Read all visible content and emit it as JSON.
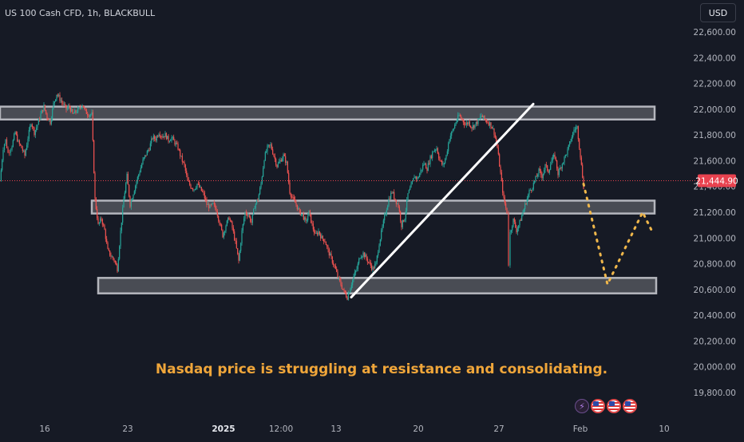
{
  "header": {
    "symbol": "US 100 Cash CFD, 1h, BLACKBULL",
    "currency": "USD"
  },
  "chart_data": {
    "type": "candlestick",
    "instrument": "US 100 Cash CFD",
    "timeframe": "1h",
    "broker": "BLACKBULL",
    "y_axis": {
      "ticks": [
        19800,
        20000,
        20200,
        20400,
        20600,
        20800,
        21000,
        21200,
        21400,
        21600,
        21800,
        22000,
        22200,
        22400,
        22600
      ],
      "tick_labels": [
        "19,800.00",
        "20,000.00",
        "20,200.00",
        "20,400.00",
        "20,600.00",
        "20,800.00",
        "21,000.00",
        "21,200.00",
        "21,400.00",
        "21,600.00",
        "21,800.00",
        "22,000.00",
        "22,200.00",
        "22,400.00",
        "22,600.00"
      ],
      "range": [
        19700,
        22700
      ]
    },
    "x_axis": {
      "tick_labels": [
        "16",
        "23",
        "2025",
        "12:00",
        "13",
        "20",
        "27",
        "Feb",
        "10"
      ]
    },
    "current_price": 21444.9,
    "current_price_label": "21,444.90",
    "price_path": [
      [
        0,
        21440
      ],
      [
        4,
        21700
      ],
      [
        7,
        21760
      ],
      [
        10,
        21660
      ],
      [
        15,
        21720
      ],
      [
        19,
        21820
      ],
      [
        23,
        21740
      ],
      [
        27,
        21700
      ],
      [
        31,
        21640
      ],
      [
        35,
        21780
      ],
      [
        39,
        21900
      ],
      [
        43,
        21820
      ],
      [
        47,
        21880
      ],
      [
        51,
        21960
      ],
      [
        55,
        22020
      ],
      [
        59,
        21940
      ],
      [
        63,
        21900
      ],
      [
        67,
        22040
      ],
      [
        71,
        22120
      ],
      [
        75,
        22080
      ],
      [
        79,
        22040
      ],
      [
        83,
        22000
      ],
      [
        87,
        22020
      ],
      [
        91,
        21960
      ],
      [
        95,
        21980
      ],
      [
        99,
        22000
      ],
      [
        103,
        22040
      ],
      [
        107,
        21980
      ],
      [
        111,
        21960
      ],
      [
        115,
        21960
      ],
      [
        119,
        21300
      ],
      [
        123,
        21100
      ],
      [
        127,
        21150
      ],
      [
        131,
        21060
      ],
      [
        135,
        20900
      ],
      [
        139,
        20860
      ],
      [
        143,
        20830
      ],
      [
        147,
        20760
      ],
      [
        151,
        21050
      ],
      [
        155,
        21300
      ],
      [
        159,
        21480
      ],
      [
        163,
        21260
      ],
      [
        167,
        21350
      ],
      [
        171,
        21440
      ],
      [
        175,
        21520
      ],
      [
        179,
        21600
      ],
      [
        183,
        21650
      ],
      [
        187,
        21700
      ],
      [
        191,
        21780
      ],
      [
        195,
        21770
      ],
      [
        199,
        21820
      ],
      [
        203,
        21790
      ],
      [
        207,
        21800
      ],
      [
        211,
        21760
      ],
      [
        215,
        21780
      ],
      [
        219,
        21740
      ],
      [
        223,
        21700
      ],
      [
        227,
        21620
      ],
      [
        231,
        21560
      ],
      [
        235,
        21440
      ],
      [
        239,
        21400
      ],
      [
        243,
        21380
      ],
      [
        247,
        21420
      ],
      [
        251,
        21380
      ],
      [
        255,
        21340
      ],
      [
        259,
        21260
      ],
      [
        263,
        21240
      ],
      [
        267,
        21260
      ],
      [
        271,
        21220
      ],
      [
        275,
        21120
      ],
      [
        279,
        21020
      ],
      [
        283,
        21100
      ],
      [
        287,
        21160
      ],
      [
        291,
        21080
      ],
      [
        295,
        20960
      ],
      [
        299,
        20820
      ],
      [
        303,
        21050
      ],
      [
        307,
        21200
      ],
      [
        311,
        21180
      ],
      [
        315,
        21120
      ],
      [
        319,
        21250
      ],
      [
        323,
        21300
      ],
      [
        327,
        21420
      ],
      [
        331,
        21620
      ],
      [
        335,
        21700
      ],
      [
        339,
        21720
      ],
      [
        343,
        21640
      ],
      [
        347,
        21560
      ],
      [
        351,
        21600
      ],
      [
        355,
        21640
      ],
      [
        359,
        21580
      ],
      [
        363,
        21360
      ],
      [
        367,
        21300
      ],
      [
        371,
        21260
      ],
      [
        375,
        21200
      ],
      [
        379,
        21180
      ],
      [
        383,
        21120
      ],
      [
        387,
        21200
      ],
      [
        391,
        21100
      ],
      [
        395,
        21020
      ],
      [
        399,
        21050
      ],
      [
        403,
        21000
      ],
      [
        407,
        20980
      ],
      [
        411,
        20900
      ],
      [
        415,
        20840
      ],
      [
        419,
        20780
      ],
      [
        423,
        20700
      ],
      [
        427,
        20640
      ],
      [
        431,
        20580
      ],
      [
        435,
        20540
      ],
      [
        439,
        20620
      ],
      [
        443,
        20700
      ],
      [
        447,
        20760
      ],
      [
        451,
        20860
      ],
      [
        455,
        20880
      ],
      [
        459,
        20840
      ],
      [
        463,
        20800
      ],
      [
        467,
        20760
      ],
      [
        471,
        20800
      ],
      [
        475,
        20960
      ],
      [
        479,
        21080
      ],
      [
        483,
        21200
      ],
      [
        487,
        21300
      ],
      [
        491,
        21360
      ],
      [
        495,
        21300
      ],
      [
        499,
        21250
      ],
      [
        503,
        21100
      ],
      [
        507,
        21160
      ],
      [
        511,
        21340
      ],
      [
        515,
        21400
      ],
      [
        519,
        21480
      ],
      [
        523,
        21460
      ],
      [
        527,
        21520
      ],
      [
        531,
        21580
      ],
      [
        535,
        21540
      ],
      [
        539,
        21620
      ],
      [
        543,
        21680
      ],
      [
        547,
        21700
      ],
      [
        551,
        21600
      ],
      [
        555,
        21560
      ],
      [
        559,
        21640
      ],
      [
        563,
        21780
      ],
      [
        567,
        21830
      ],
      [
        571,
        21900
      ],
      [
        575,
        21950
      ],
      [
        579,
        21920
      ],
      [
        583,
        21880
      ],
      [
        587,
        21900
      ],
      [
        591,
        21860
      ],
      [
        595,
        21880
      ],
      [
        599,
        21910
      ],
      [
        603,
        21950
      ],
      [
        607,
        21920
      ],
      [
        611,
        21900
      ],
      [
        615,
        21880
      ],
      [
        619,
        21820
      ],
      [
        623,
        21700
      ],
      [
        627,
        21500
      ],
      [
        631,
        21300
      ],
      [
        635,
        21200
      ],
      [
        637,
        20800
      ],
      [
        639,
        21040
      ],
      [
        643,
        21140
      ],
      [
        647,
        21060
      ],
      [
        651,
        21120
      ],
      [
        655,
        21200
      ],
      [
        659,
        21280
      ],
      [
        663,
        21360
      ],
      [
        667,
        21400
      ],
      [
        671,
        21460
      ],
      [
        675,
        21520
      ],
      [
        679,
        21480
      ],
      [
        683,
        21560
      ],
      [
        687,
        21520
      ],
      [
        691,
        21600
      ],
      [
        695,
        21640
      ],
      [
        699,
        21500
      ],
      [
        703,
        21560
      ],
      [
        707,
        21620
      ],
      [
        711,
        21680
      ],
      [
        715,
        21760
      ],
      [
        719,
        21840
      ],
      [
        723,
        21860
      ],
      [
        727,
        21640
      ],
      [
        731,
        21400
      ]
    ],
    "zones": [
      {
        "low": 21920,
        "high": 22020
      },
      {
        "low": 21190,
        "high": 21290
      },
      {
        "low": 20570,
        "high": 20690
      }
    ],
    "trendline": {
      "from": [
        440,
        20540
      ],
      "to": [
        668,
        22040
      ]
    },
    "projection": [
      [
        731,
        21420
      ],
      [
        761,
        20640
      ],
      [
        805,
        21200
      ],
      [
        817,
        21050
      ]
    ],
    "annotation": "Nasdaq price is struggling at resistance and consolidating."
  },
  "colors": {
    "background": "#161a25",
    "up": "#26a69a",
    "down": "#ef5350",
    "axis_text": "#b2b5be",
    "zone_fill": "rgba(255,255,255,0.22)",
    "zone_stroke": "#b4b6bd",
    "trendline": "#ffffff",
    "projection": "#f0b74b",
    "annotation": "#f0a63a",
    "price_tag": "#e8424f"
  }
}
